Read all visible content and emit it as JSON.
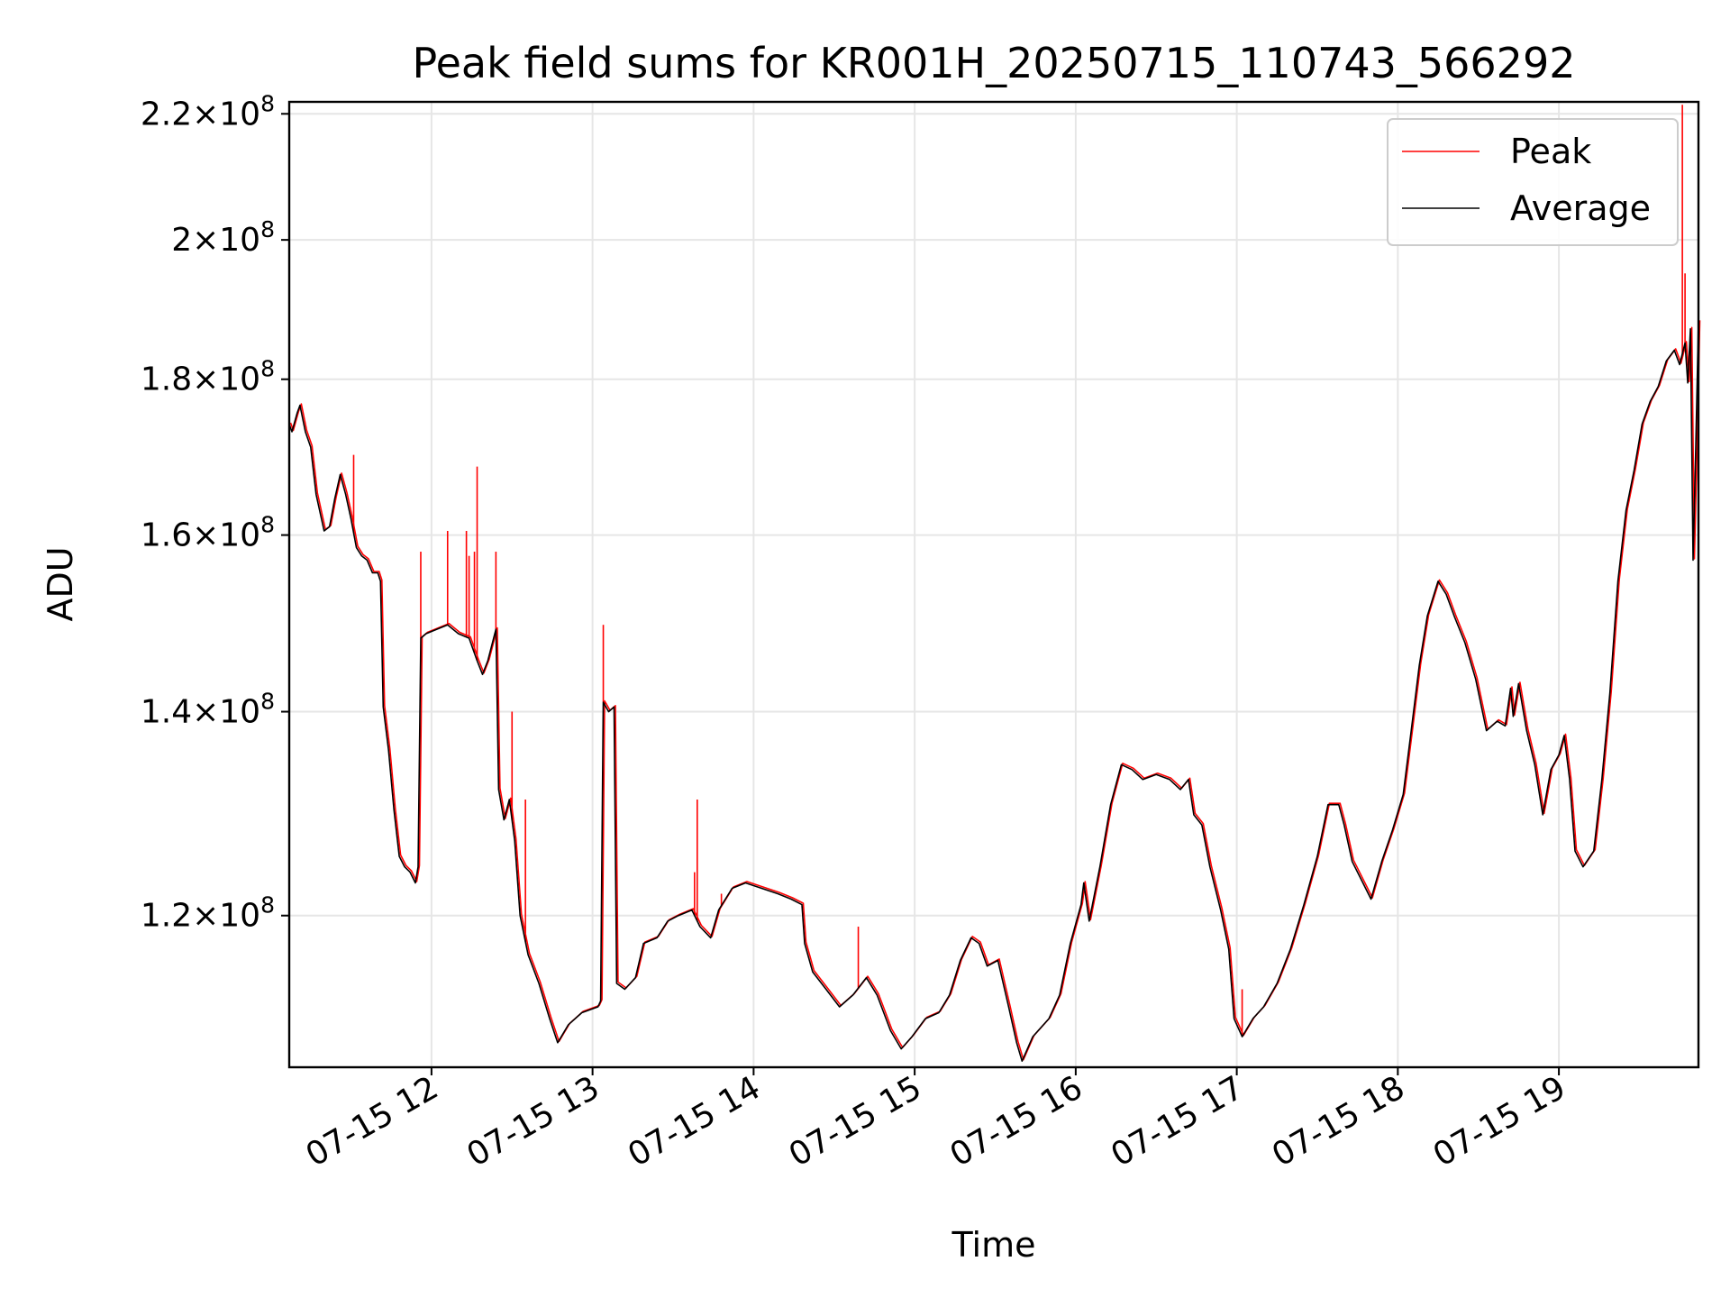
{
  "chart_data": {
    "type": "line",
    "title": "Peak field sums for KR001H_20250715_110743_566292",
    "xlabel": "Time",
    "ylabel": "ADU",
    "yscale": "log",
    "xlim": [
      "2025-07-15 11:07",
      "2025-07-15 19:52"
    ],
    "ylim": [
      107000000,
      222000000
    ],
    "grid": true,
    "legend_position": "top-right",
    "x_ticks": [
      {
        "value": "2025-07-15 12:00",
        "label": "07-15 12"
      },
      {
        "value": "2025-07-15 13:00",
        "label": "07-15 13"
      },
      {
        "value": "2025-07-15 14:00",
        "label": "07-15 14"
      },
      {
        "value": "2025-07-15 15:00",
        "label": "07-15 15"
      },
      {
        "value": "2025-07-15 16:00",
        "label": "07-15 16"
      },
      {
        "value": "2025-07-15 17:00",
        "label": "07-15 17"
      },
      {
        "value": "2025-07-15 18:00",
        "label": "07-15 18"
      },
      {
        "value": "2025-07-15 19:00",
        "label": "07-15 19"
      }
    ],
    "y_ticks": [
      {
        "value": 120000000,
        "mantissa": "1.2",
        "exp": "8"
      },
      {
        "value": 140000000,
        "mantissa": "1.4",
        "exp": "8"
      },
      {
        "value": 160000000,
        "mantissa": "1.6",
        "exp": "8"
      },
      {
        "value": 180000000,
        "mantissa": "1.8",
        "exp": "8"
      },
      {
        "value": 200000000,
        "mantissa": "2",
        "exp": "8"
      },
      {
        "value": 220000000,
        "mantissa": "2.2",
        "exp": "8"
      }
    ],
    "series": [
      {
        "name": "Average",
        "color": "#000000",
        "points": [
          [
            "2025-07-15 11:07",
            174000000
          ],
          [
            "2025-07-15 11:08",
            173000000
          ],
          [
            "2025-07-15 11:10",
            175500000
          ],
          [
            "2025-07-15 11:11",
            176500000
          ],
          [
            "2025-07-15 11:13",
            173000000
          ],
          [
            "2025-07-15 11:15",
            171000000
          ],
          [
            "2025-07-15 11:17",
            165000000
          ],
          [
            "2025-07-15 11:20",
            160500000
          ],
          [
            "2025-07-15 11:22",
            161000000
          ],
          [
            "2025-07-15 11:24",
            164500000
          ],
          [
            "2025-07-15 11:26",
            167500000
          ],
          [
            "2025-07-15 11:28",
            165000000
          ],
          [
            "2025-07-15 11:30",
            162000000
          ],
          [
            "2025-07-15 11:32",
            158500000
          ],
          [
            "2025-07-15 11:34",
            157500000
          ],
          [
            "2025-07-15 11:36",
            157000000
          ],
          [
            "2025-07-15 11:38",
            155500000
          ],
          [
            "2025-07-15 11:40",
            155500000
          ],
          [
            "2025-07-15 11:41",
            154500000
          ],
          [
            "2025-07-15 11:42",
            140500000
          ],
          [
            "2025-07-15 11:44",
            136000000
          ],
          [
            "2025-07-15 11:46",
            130000000
          ],
          [
            "2025-07-15 11:48",
            125500000
          ],
          [
            "2025-07-15 11:50",
            124500000
          ],
          [
            "2025-07-15 11:52",
            124000000
          ],
          [
            "2025-07-15 11:54",
            123000000
          ],
          [
            "2025-07-15 11:55",
            124500000
          ],
          [
            "2025-07-15 11:56",
            148000000
          ],
          [
            "2025-07-15 11:58",
            148500000
          ],
          [
            "2025-07-15 12:02",
            149000000
          ],
          [
            "2025-07-15 12:06",
            149500000
          ],
          [
            "2025-07-15 12:10",
            148500000
          ],
          [
            "2025-07-15 12:14",
            148000000
          ],
          [
            "2025-07-15 12:17",
            145500000
          ],
          [
            "2025-07-15 12:19",
            144000000
          ],
          [
            "2025-07-15 12:21",
            145500000
          ],
          [
            "2025-07-15 12:24",
            149000000
          ],
          [
            "2025-07-15 12:25",
            132000000
          ],
          [
            "2025-07-15 12:27",
            129000000
          ],
          [
            "2025-07-15 12:29",
            131000000
          ],
          [
            "2025-07-15 12:31",
            127000000
          ],
          [
            "2025-07-15 12:33",
            120000000
          ],
          [
            "2025-07-15 12:36",
            116500000
          ],
          [
            "2025-07-15 12:40",
            114000000
          ],
          [
            "2025-07-15 12:44",
            111000000
          ],
          [
            "2025-07-15 12:47",
            109000000
          ],
          [
            "2025-07-15 12:51",
            110500000
          ],
          [
            "2025-07-15 12:56",
            111500000
          ],
          [
            "2025-07-15 13:02",
            112000000
          ],
          [
            "2025-07-15 13:03",
            112500000
          ],
          [
            "2025-07-15 13:04",
            141000000
          ],
          [
            "2025-07-15 13:06",
            140000000
          ],
          [
            "2025-07-15 13:08",
            140500000
          ],
          [
            "2025-07-15 13:09",
            114000000
          ],
          [
            "2025-07-15 13:12",
            113500000
          ],
          [
            "2025-07-15 13:16",
            114500000
          ],
          [
            "2025-07-15 13:19",
            117500000
          ],
          [
            "2025-07-15 13:24",
            118000000
          ],
          [
            "2025-07-15 13:28",
            119500000
          ],
          [
            "2025-07-15 13:32",
            120000000
          ],
          [
            "2025-07-15 13:37",
            120500000
          ],
          [
            "2025-07-15 13:40",
            119000000
          ],
          [
            "2025-07-15 13:44",
            118000000
          ],
          [
            "2025-07-15 13:47",
            120500000
          ],
          [
            "2025-07-15 13:52",
            122500000
          ],
          [
            "2025-07-15 13:57",
            123000000
          ],
          [
            "2025-07-15 14:03",
            122500000
          ],
          [
            "2025-07-15 14:09",
            122000000
          ],
          [
            "2025-07-15 14:14",
            121500000
          ],
          [
            "2025-07-15 14:18",
            121000000
          ],
          [
            "2025-07-15 14:19",
            117500000
          ],
          [
            "2025-07-15 14:22",
            115000000
          ],
          [
            "2025-07-15 14:27",
            113500000
          ],
          [
            "2025-07-15 14:32",
            112000000
          ],
          [
            "2025-07-15 14:37",
            113000000
          ],
          [
            "2025-07-15 14:42",
            114500000
          ],
          [
            "2025-07-15 14:46",
            113000000
          ],
          [
            "2025-07-15 14:51",
            110000000
          ],
          [
            "2025-07-15 14:55",
            108500000
          ],
          [
            "2025-07-15 14:59",
            109500000
          ],
          [
            "2025-07-15 15:04",
            111000000
          ],
          [
            "2025-07-15 15:09",
            111500000
          ],
          [
            "2025-07-15 15:13",
            113000000
          ],
          [
            "2025-07-15 15:17",
            116000000
          ],
          [
            "2025-07-15 15:21",
            118000000
          ],
          [
            "2025-07-15 15:24",
            117500000
          ],
          [
            "2025-07-15 15:27",
            115500000
          ],
          [
            "2025-07-15 15:31",
            116000000
          ],
          [
            "2025-07-15 15:35",
            112000000
          ],
          [
            "2025-07-15 15:38",
            109000000
          ],
          [
            "2025-07-15 15:40",
            107500000
          ],
          [
            "2025-07-15 15:44",
            109500000
          ],
          [
            "2025-07-15 15:50",
            111000000
          ],
          [
            "2025-07-15 15:54",
            113000000
          ],
          [
            "2025-07-15 15:58",
            117500000
          ],
          [
            "2025-07-15 16:02",
            121000000
          ],
          [
            "2025-07-15 16:03",
            123000000
          ],
          [
            "2025-07-15 16:05",
            119500000
          ],
          [
            "2025-07-15 16:09",
            124500000
          ],
          [
            "2025-07-15 16:13",
            130500000
          ],
          [
            "2025-07-15 16:17",
            134500000
          ],
          [
            "2025-07-15 16:21",
            134000000
          ],
          [
            "2025-07-15 16:25",
            133000000
          ],
          [
            "2025-07-15 16:30",
            133500000
          ],
          [
            "2025-07-15 16:35",
            133000000
          ],
          [
            "2025-07-15 16:39",
            132000000
          ],
          [
            "2025-07-15 16:42",
            133000000
          ],
          [
            "2025-07-15 16:44",
            129500000
          ],
          [
            "2025-07-15 16:47",
            128500000
          ],
          [
            "2025-07-15 16:50",
            124500000
          ],
          [
            "2025-07-15 16:54",
            120500000
          ],
          [
            "2025-07-15 16:57",
            117000000
          ],
          [
            "2025-07-15 16:59",
            111000000
          ],
          [
            "2025-07-15 17:02",
            109500000
          ],
          [
            "2025-07-15 17:06",
            111000000
          ],
          [
            "2025-07-15 17:10",
            112000000
          ],
          [
            "2025-07-15 17:15",
            114000000
          ],
          [
            "2025-07-15 17:20",
            117000000
          ],
          [
            "2025-07-15 17:25",
            121000000
          ],
          [
            "2025-07-15 17:30",
            125500000
          ],
          [
            "2025-07-15 17:34",
            130500000
          ],
          [
            "2025-07-15 17:38",
            130500000
          ],
          [
            "2025-07-15 17:40",
            128500000
          ],
          [
            "2025-07-15 17:43",
            125000000
          ],
          [
            "2025-07-15 17:47",
            123000000
          ],
          [
            "2025-07-15 17:50",
            121500000
          ],
          [
            "2025-07-15 17:54",
            125000000
          ],
          [
            "2025-07-15 17:58",
            128000000
          ],
          [
            "2025-07-15 18:02",
            131500000
          ],
          [
            "2025-07-15 18:05",
            138000000
          ],
          [
            "2025-07-15 18:08",
            145000000
          ],
          [
            "2025-07-15 18:11",
            150500000
          ],
          [
            "2025-07-15 18:15",
            154500000
          ],
          [
            "2025-07-15 18:18",
            153000000
          ],
          [
            "2025-07-15 18:21",
            150500000
          ],
          [
            "2025-07-15 18:25",
            147500000
          ],
          [
            "2025-07-15 18:29",
            143500000
          ],
          [
            "2025-07-15 18:33",
            138000000
          ],
          [
            "2025-07-15 18:37",
            139000000
          ],
          [
            "2025-07-15 18:40",
            138500000
          ],
          [
            "2025-07-15 18:42",
            142500000
          ],
          [
            "2025-07-15 18:43",
            139500000
          ],
          [
            "2025-07-15 18:45",
            143000000
          ],
          [
            "2025-07-15 18:48",
            138000000
          ],
          [
            "2025-07-15 18:51",
            134500000
          ],
          [
            "2025-07-15 18:54",
            129500000
          ],
          [
            "2025-07-15 18:57",
            134000000
          ],
          [
            "2025-07-15 19:00",
            135500000
          ],
          [
            "2025-07-15 19:02",
            137500000
          ],
          [
            "2025-07-15 19:04",
            133000000
          ],
          [
            "2025-07-15 19:06",
            126000000
          ],
          [
            "2025-07-15 19:09",
            124500000
          ],
          [
            "2025-07-15 19:13",
            126000000
          ],
          [
            "2025-07-15 19:16",
            133000000
          ],
          [
            "2025-07-15 19:19",
            142000000
          ],
          [
            "2025-07-15 19:22",
            154500000
          ],
          [
            "2025-07-15 19:25",
            163000000
          ],
          [
            "2025-07-15 19:28",
            168000000
          ],
          [
            "2025-07-15 19:31",
            174000000
          ],
          [
            "2025-07-15 19:34",
            177000000
          ],
          [
            "2025-07-15 19:37",
            179000000
          ],
          [
            "2025-07-15 19:40",
            182500000
          ],
          [
            "2025-07-15 19:43",
            184000000
          ],
          [
            "2025-07-15 19:45",
            182000000
          ],
          [
            "2025-07-15 19:47",
            185000000
          ],
          [
            "2025-07-15 19:48",
            179500000
          ],
          [
            "2025-07-15 19:49",
            187000000
          ],
          [
            "2025-07-15 19:50",
            157000000
          ],
          [
            "2025-07-15 19:51",
            171000000
          ],
          [
            "2025-07-15 19:52",
            188000000
          ]
        ]
      },
      {
        "name": "Peak",
        "color": "#ff0000",
        "spikes": [
          [
            "2025-07-15 11:31",
            170000000
          ],
          [
            "2025-07-15 11:56",
            158000000
          ],
          [
            "2025-07-15 12:06",
            160500000
          ],
          [
            "2025-07-15 12:13",
            160500000
          ],
          [
            "2025-07-15 12:14",
            157500000
          ],
          [
            "2025-07-15 12:16",
            158000000
          ],
          [
            "2025-07-15 12:17",
            168500000
          ],
          [
            "2025-07-15 12:24",
            158000000
          ],
          [
            "2025-07-15 12:30",
            140000000
          ],
          [
            "2025-07-15 12:35",
            131000000
          ],
          [
            "2025-07-15 13:04",
            149500000
          ],
          [
            "2025-07-15 13:38",
            124000000
          ],
          [
            "2025-07-15 13:39",
            131000000
          ],
          [
            "2025-07-15 13:48",
            122000000
          ],
          [
            "2025-07-15 14:39",
            119000000
          ],
          [
            "2025-07-15 17:02",
            113500000
          ],
          [
            "2025-07-15 19:46",
            221500000
          ],
          [
            "2025-07-15 19:47",
            195000000
          ]
        ]
      }
    ]
  }
}
